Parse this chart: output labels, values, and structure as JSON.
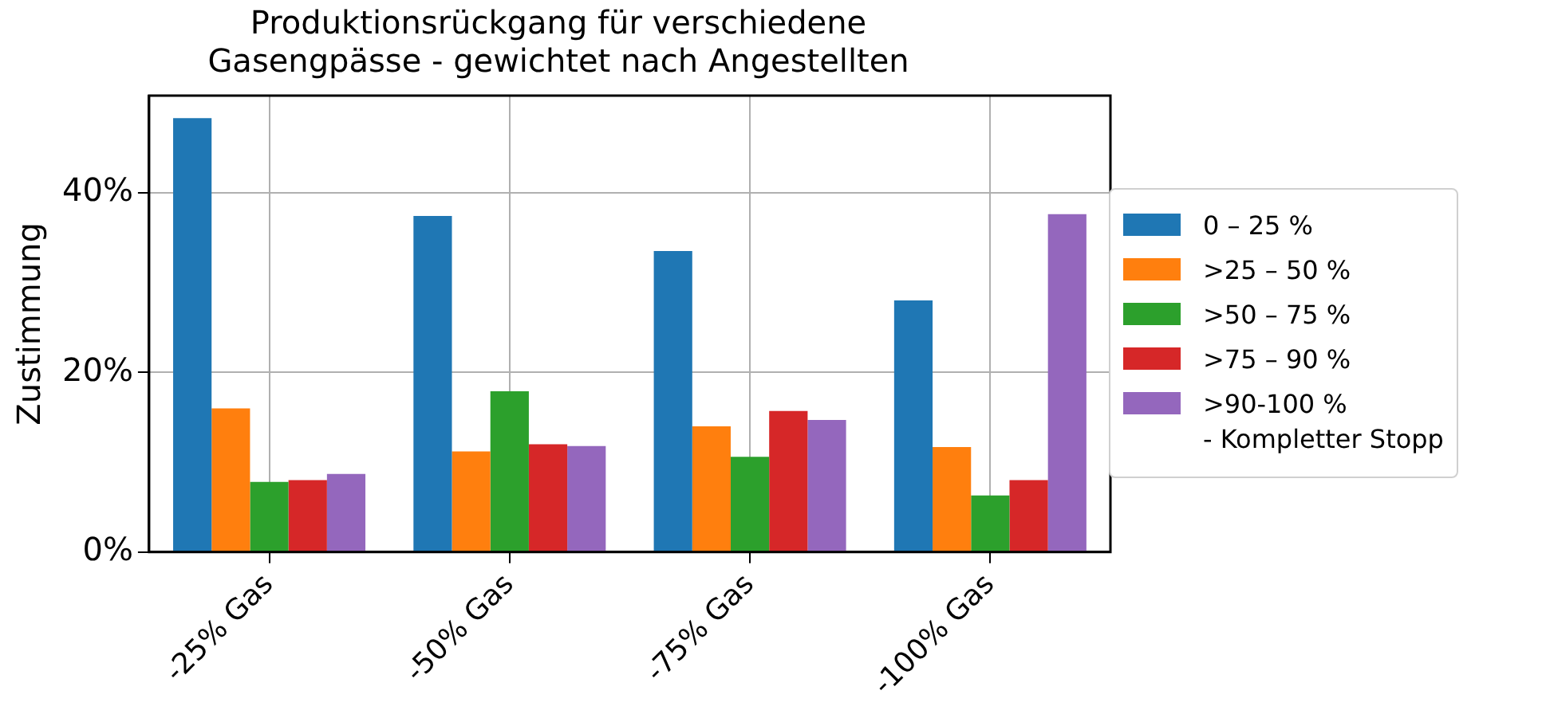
{
  "chart_data": {
    "type": "bar",
    "title": "Produktionsrückgang für verschiedene\nGasengpässe - gewichtet nach Angestellten",
    "ylabel": "Zustimmung",
    "categories": [
      "-25% Gas",
      "-50% Gas",
      "-75% Gas",
      "-100% Gas"
    ],
    "series": [
      {
        "name": "0 – 25 %",
        "color": "#1f77b4",
        "values": [
          48.3,
          37.4,
          33.5,
          28.0
        ]
      },
      {
        "name": ">25 – 50 %",
        "color": "#ff7f0e",
        "values": [
          16.0,
          11.2,
          14.0,
          11.7
        ]
      },
      {
        "name": ">50 – 75 %",
        "color": "#2ca02c",
        "values": [
          7.8,
          17.9,
          10.6,
          6.3
        ]
      },
      {
        "name": ">75 – 90 %",
        "color": "#d62728",
        "values": [
          8.0,
          12.0,
          15.7,
          8.0
        ]
      },
      {
        "name": ">90-100 %\n- Kompletter Stopp",
        "color": "#9467bd",
        "values": [
          8.7,
          11.8,
          14.7,
          37.6
        ]
      }
    ],
    "ylim": [
      0,
      50.8
    ],
    "yticks": [
      {
        "value": 0,
        "label": "0%"
      },
      {
        "value": 20,
        "label": "20%"
      },
      {
        "value": 40,
        "label": "40%"
      }
    ],
    "grid": true,
    "legend": "right"
  }
}
